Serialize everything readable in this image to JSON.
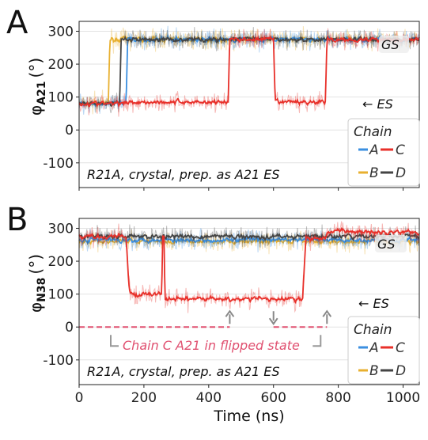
{
  "chart_data": [
    {
      "panel": "A",
      "type": "line",
      "ylabel_main": "φ",
      "ylabel_sub": "A21",
      "ylabel_unit": "(°)",
      "xlim": [
        0,
        1050
      ],
      "ylim": [
        -175,
        330
      ],
      "yticks": [
        -100,
        0,
        100,
        200,
        300
      ],
      "xticks": [
        0,
        200,
        400,
        600,
        800,
        1000
      ],
      "annotation": "R21A, crystal, prep. as A21 ES",
      "gs_label": "GS",
      "es_label": "← ES",
      "es_value": 85,
      "gs_value": 275,
      "series": [
        {
          "name": "A",
          "color": "#3b8fe0",
          "x": [
            0,
            145,
            150,
            1050
          ],
          "y": [
            80,
            80,
            275,
            275
          ]
        },
        {
          "name": "B",
          "color": "#e8b030",
          "x": [
            0,
            90,
            95,
            1050
          ],
          "y": [
            80,
            80,
            275,
            275
          ]
        },
        {
          "name": "C",
          "color": "#e8302a",
          "x": [
            0,
            140,
            145,
            460,
            465,
            600,
            605,
            760,
            765,
            1050
          ],
          "y": [
            80,
            80,
            85,
            85,
            275,
            275,
            85,
            85,
            275,
            275
          ]
        },
        {
          "name": "D",
          "color": "#444444",
          "x": [
            0,
            125,
            130,
            1050
          ],
          "y": [
            80,
            80,
            275,
            275
          ]
        }
      ],
      "legend": {
        "title": "Chain",
        "placement": "bottom-right",
        "entries": [
          [
            "A",
            "C"
          ],
          [
            "B",
            "D"
          ]
        ]
      }
    },
    {
      "panel": "B",
      "type": "line",
      "ylabel_main": "φ",
      "ylabel_sub": "N38",
      "ylabel_unit": "(°)",
      "xlim": [
        0,
        1050
      ],
      "ylim": [
        -175,
        330
      ],
      "yticks": [
        -100,
        0,
        100,
        200,
        300
      ],
      "xticks": [
        0,
        200,
        400,
        600,
        800,
        1000
      ],
      "xlabel": "Time (ns)",
      "annotation": "R21A, crystal, prep. as A21 ES",
      "gs_label": "GS",
      "es_label": "← ES",
      "es_value": 90,
      "gs_value": 270,
      "flip_label": "Chain C A21 in flipped state",
      "flip_segments": [
        [
          0,
          465
        ],
        [
          600,
          765
        ]
      ],
      "flip_arrows": {
        "up": [
          465,
          765
        ],
        "down": [
          600
        ]
      },
      "series": [
        {
          "name": "A",
          "color": "#3b8fe0",
          "x": [
            0,
            1050
          ],
          "y": [
            265,
            265
          ]
        },
        {
          "name": "B",
          "color": "#e8b030",
          "x": [
            0,
            1050
          ],
          "y": [
            260,
            260
          ]
        },
        {
          "name": "C",
          "color": "#e8302a",
          "x": [
            0,
            145,
            155,
            255,
            258,
            262,
            265,
            690,
            700,
            760,
            770,
            1050
          ],
          "y": [
            275,
            275,
            100,
            100,
            275,
            275,
            85,
            85,
            270,
            270,
            290,
            290
          ]
        },
        {
          "name": "D",
          "color": "#444444",
          "x": [
            0,
            1050
          ],
          "y": [
            275,
            275
          ]
        }
      ],
      "legend": {
        "title": "Chain",
        "placement": "bottom-right",
        "entries": [
          [
            "A",
            "C"
          ],
          [
            "B",
            "D"
          ]
        ]
      }
    }
  ]
}
